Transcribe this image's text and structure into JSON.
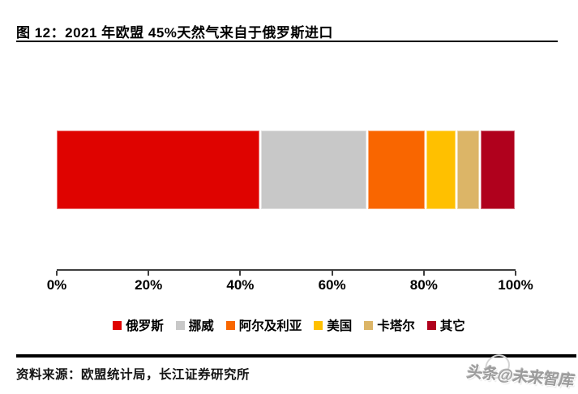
{
  "title": {
    "text": "图 12：2021 年欧盟 45%天然气来自于俄罗斯进口"
  },
  "chart_data": {
    "type": "bar",
    "stacked": true,
    "orientation": "horizontal",
    "title": "2021 年欧盟 45%天然气来自于俄罗斯进口",
    "unit": "%",
    "categories": [
      "俄罗斯",
      "挪威",
      "阿尔及利亚",
      "美国",
      "卡塔尔",
      "其它"
    ],
    "values": [
      45,
      23.5,
      12.5,
      6.5,
      5,
      7.5
    ],
    "colors": [
      "#df0300",
      "#c8c8c8",
      "#f96600",
      "#ffc000",
      "#dcb567",
      "#b0011d"
    ],
    "x_ticks": [
      "0%",
      "20%",
      "40%",
      "60%",
      "80%",
      "100%"
    ],
    "xlim": [
      0,
      100
    ],
    "grid": false,
    "legend_position": "bottom",
    "axis_color": "#3f3f3f"
  },
  "footer": {
    "source_note": "资料来源：欧盟统计局，长江证券研究所"
  },
  "watermark": {
    "text": "头条@未来智库"
  }
}
